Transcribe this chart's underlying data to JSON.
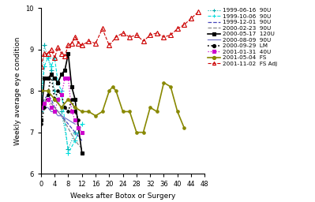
{
  "title": "",
  "xlabel": "Weeks after Botox or Surgery",
  "ylabel": "Weekly average eye condition",
  "xlim": [
    0,
    48
  ],
  "ylim": [
    6.0,
    10.0
  ],
  "xticks": [
    0,
    4,
    8,
    12,
    16,
    20,
    24,
    28,
    32,
    36,
    40,
    44,
    48
  ],
  "yticks": [
    6.0,
    7.0,
    8.0,
    9.0,
    10.0
  ],
  "series": [
    {
      "label": "1999-06-16  90U",
      "color": "#00aaaa",
      "linestyle": ":",
      "marker": "+",
      "markersize": 4,
      "linewidth": 0.8,
      "x": [
        0,
        1,
        2,
        3,
        4,
        5,
        6,
        8,
        10
      ],
      "y": [
        7.5,
        9.1,
        8.8,
        8.5,
        8.0,
        7.8,
        7.5,
        6.6,
        7.0
      ]
    },
    {
      "label": "1999-10-06  90U",
      "color": "#00dddd",
      "linestyle": "--",
      "marker": "+",
      "markersize": 4,
      "linewidth": 0.8,
      "x": [
        0,
        1,
        2,
        3,
        4,
        5,
        6,
        8,
        10,
        12
      ],
      "y": [
        7.6,
        8.6,
        8.8,
        8.6,
        8.8,
        8.2,
        8.0,
        6.5,
        6.8,
        7.2
      ]
    },
    {
      "label": "1999-12-01  90U",
      "color": "#4444bb",
      "linestyle": "--",
      "marker": null,
      "markersize": 4,
      "linewidth": 0.9,
      "x": [
        0,
        1,
        2,
        3,
        4,
        5,
        6,
        8,
        10,
        12
      ],
      "y": [
        7.6,
        7.8,
        7.9,
        7.8,
        7.6,
        7.5,
        7.4,
        7.2,
        7.0,
        6.8
      ]
    },
    {
      "label": "2000-02-23  90U",
      "color": "#888888",
      "linestyle": "--",
      "marker": null,
      "markersize": 4,
      "linewidth": 0.9,
      "x": [
        0,
        1,
        2,
        3,
        4,
        5,
        6,
        8,
        10,
        12
      ],
      "y": [
        7.5,
        7.7,
        7.9,
        7.7,
        7.6,
        7.5,
        7.4,
        7.1,
        6.8,
        6.6
      ]
    },
    {
      "label": "2000-05-17  120U",
      "color": "#000000",
      "linestyle": "-",
      "marker": "s",
      "markersize": 2.5,
      "linewidth": 1.2,
      "x": [
        0,
        1,
        2,
        3,
        4,
        5,
        6,
        7,
        8,
        9,
        10,
        11,
        12
      ],
      "y": [
        7.3,
        8.3,
        8.3,
        8.4,
        8.3,
        8.2,
        8.4,
        8.5,
        8.9,
        8.1,
        7.8,
        7.1,
        6.5
      ]
    },
    {
      "label": "2000-08-09  90U",
      "color": "#7777cc",
      "linestyle": "-",
      "marker": null,
      "markersize": 4,
      "linewidth": 0.9,
      "x": [
        0,
        1,
        2,
        3,
        4,
        5,
        6,
        8,
        10
      ],
      "y": [
        7.5,
        7.6,
        7.6,
        7.5,
        7.5,
        7.4,
        7.4,
        7.3,
        7.2
      ]
    },
    {
      "label": "2000-09-29  LM",
      "color": "#000000",
      "linestyle": ":",
      "marker": "o",
      "markersize": 2.5,
      "linewidth": 1.2,
      "x": [
        0,
        1,
        2,
        3,
        4,
        5,
        6,
        7,
        8,
        9,
        10,
        11
      ],
      "y": [
        7.2,
        7.6,
        7.9,
        8.4,
        7.8,
        8.0,
        7.9,
        7.6,
        7.5,
        7.8,
        7.5,
        7.3
      ]
    },
    {
      "label": "2001-01-31  40U",
      "color": "#cc00cc",
      "linestyle": ":",
      "marker": "s",
      "markersize": 2.5,
      "linewidth": 0.9,
      "x": [
        0,
        1,
        2,
        3,
        4,
        5,
        6,
        7,
        8,
        9,
        10,
        11,
        12
      ],
      "y": [
        7.6,
        7.7,
        7.8,
        7.6,
        7.5,
        7.8,
        7.9,
        8.3,
        8.3,
        7.5,
        7.3,
        7.1,
        7.0
      ]
    },
    {
      "label": "2001-05-04  FS",
      "color": "#888800",
      "linestyle": "-",
      "marker": "o",
      "markersize": 2.5,
      "linewidth": 1.2,
      "x": [
        0,
        2,
        4,
        6,
        8,
        10,
        12,
        14,
        16,
        18,
        20,
        21,
        22,
        24,
        26,
        28,
        30,
        32,
        34,
        36,
        38,
        40,
        42
      ],
      "y": [
        8.0,
        8.0,
        7.8,
        7.6,
        7.8,
        7.6,
        7.5,
        7.5,
        7.4,
        7.5,
        8.0,
        8.1,
        8.0,
        7.5,
        7.5,
        7.0,
        7.0,
        7.6,
        7.5,
        8.2,
        8.1,
        7.5,
        7.1
      ]
    },
    {
      "label": "2001-11-02  FS Adj",
      "color": "#cc0000",
      "linestyle": "--",
      "marker": "^",
      "markersize": 4,
      "linewidth": 0.8,
      "x": [
        0,
        1,
        2,
        3,
        4,
        5,
        6,
        7,
        8,
        9,
        10,
        11,
        12,
        14,
        16,
        18,
        20,
        22,
        24,
        26,
        28,
        30,
        32,
        34,
        36,
        38,
        40,
        42,
        44,
        46
      ],
      "y": [
        8.6,
        8.9,
        8.9,
        9.0,
        8.8,
        9.05,
        8.9,
        8.85,
        9.1,
        9.15,
        9.3,
        9.15,
        9.1,
        9.2,
        9.15,
        9.5,
        9.1,
        9.3,
        9.4,
        9.3,
        9.35,
        9.2,
        9.35,
        9.4,
        9.3,
        9.35,
        9.5,
        9.6,
        9.75,
        9.9
      ]
    }
  ],
  "background_color": "#ffffff",
  "legend_fontsize": 5.2,
  "axis_fontsize": 6.5,
  "tick_fontsize": 6.0
}
